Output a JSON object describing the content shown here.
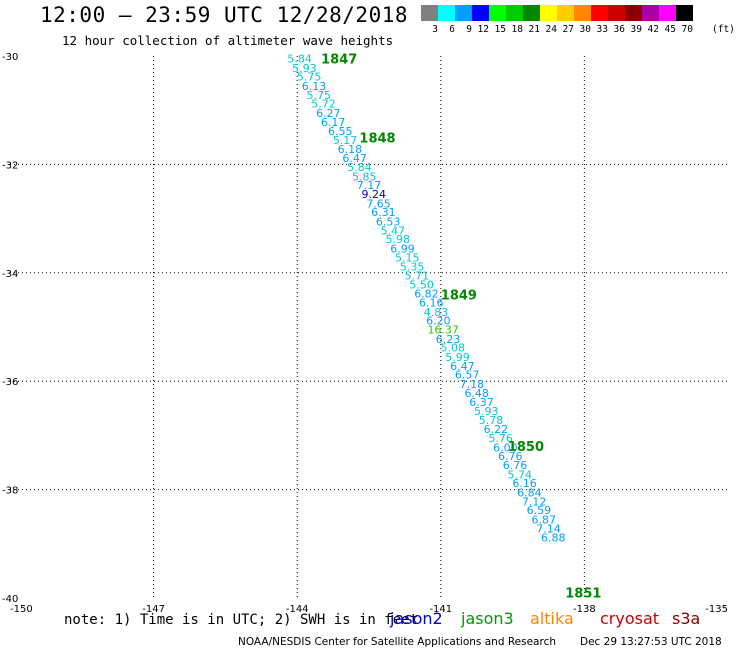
{
  "header": {
    "title": "12:00 — 23:59 UTC 12/28/2018",
    "subtitle": "12 hour collection of altimeter wave heights"
  },
  "color_scale": {
    "unit": "(ft)",
    "bins": [
      {
        "tick": "3",
        "color": "#808080"
      },
      {
        "tick": "6",
        "color": "#00ffff"
      },
      {
        "tick": "9",
        "color": "#00a0ff"
      },
      {
        "tick": "12",
        "color": "#0000ff"
      },
      {
        "tick": "15",
        "color": "#00ff00"
      },
      {
        "tick": "18",
        "color": "#00cc00"
      },
      {
        "tick": "21",
        "color": "#008800"
      },
      {
        "tick": "24",
        "color": "#ffff00"
      },
      {
        "tick": "27",
        "color": "#ffcc00"
      },
      {
        "tick": "30",
        "color": "#ff8800"
      },
      {
        "tick": "33",
        "color": "#ff0000"
      },
      {
        "tick": "36",
        "color": "#cc0000"
      },
      {
        "tick": "39",
        "color": "#880000"
      },
      {
        "tick": "42",
        "color": "#aa00aa"
      },
      {
        "tick": "45",
        "color": "#ff00ff"
      },
      {
        "tick": "70",
        "color": "#000000"
      }
    ]
  },
  "footer": {
    "note": "note: 1) Time is in UTC; 2) SWH is in feet",
    "satellites": [
      {
        "name": "jason2",
        "color": "#0000cc"
      },
      {
        "name": "jason3",
        "color": "#009900"
      },
      {
        "name": "altika",
        "color": "#ff8800"
      },
      {
        "name": "cryosat",
        "color": "#cc0000"
      },
      {
        "name": "s3a",
        "color": "#880000"
      }
    ],
    "credit": "NOAA/NESDIS Center for Satellite Applications and Research",
    "timestamp": "Dec 29 13:27:53 UTC 2018"
  },
  "chart_data": {
    "type": "scatter",
    "title": "12:00 — 23:59 UTC 12/28/2018",
    "xlabel": "",
    "ylabel": "",
    "xlim": [
      -150,
      -135
    ],
    "ylim": [
      -40,
      -30
    ],
    "x_ticks": [
      "-150",
      "-147",
      "-144",
      "-141",
      "-138",
      "-135"
    ],
    "x_tick_values": [
      -150,
      -147,
      -144,
      -141,
      -138,
      -135
    ],
    "y_ticks": [
      "-30",
      "-32",
      "-34",
      "-36",
      "-38",
      "-40"
    ],
    "y_tick_values": [
      -30,
      -32,
      -34,
      -36,
      -38,
      -40
    ],
    "grid": true,
    "series": [
      {
        "points": [
          {
            "lon": -143.95,
            "lat": -30.05,
            "value": "5.84",
            "color": "#00cccc"
          },
          {
            "lon": -143.85,
            "lat": -30.22,
            "value": "5.93",
            "color": "#00cccc"
          },
          {
            "lon": -143.75,
            "lat": -30.38,
            "value": "5.75",
            "color": "#00cccc"
          },
          {
            "lon": -143.65,
            "lat": -30.55,
            "value": "6.13",
            "color": "#00a0ff"
          },
          {
            "lon": -143.55,
            "lat": -30.72,
            "value": "5.75",
            "color": "#00cccc"
          },
          {
            "lon": -143.45,
            "lat": -30.88,
            "value": "5.72",
            "color": "#00cccc"
          },
          {
            "lon": -143.35,
            "lat": -31.05,
            "value": "6.27",
            "color": "#00a0ff"
          },
          {
            "lon": -143.25,
            "lat": -31.22,
            "value": "6.17",
            "color": "#00a0ff"
          },
          {
            "lon": -143.1,
            "lat": -31.38,
            "value": "6.55",
            "color": "#00a0ff"
          },
          {
            "lon": -143.0,
            "lat": -31.55,
            "value": "5.17",
            "color": "#00cccc"
          },
          {
            "lon": -142.9,
            "lat": -31.72,
            "value": "6.18",
            "color": "#00a0ff"
          },
          {
            "lon": -142.8,
            "lat": -31.88,
            "value": "6.47",
            "color": "#00a0ff"
          },
          {
            "lon": -142.7,
            "lat": -32.05,
            "value": "5.84",
            "color": "#00cccc"
          },
          {
            "lon": -142.6,
            "lat": -32.22,
            "value": "5.85",
            "color": "#00cccc"
          },
          {
            "lon": -142.5,
            "lat": -32.38,
            "value": "7.17",
            "color": "#00a0ff"
          },
          {
            "lon": -142.4,
            "lat": -32.55,
            "value": "9.24",
            "color": "#0000cc"
          },
          {
            "lon": -142.3,
            "lat": -32.72,
            "value": "7.65",
            "color": "#00a0ff"
          },
          {
            "lon": -142.2,
            "lat": -32.88,
            "value": "6.31",
            "color": "#00a0ff"
          },
          {
            "lon": -142.1,
            "lat": -33.05,
            "value": "6.53",
            "color": "#00a0ff"
          },
          {
            "lon": -142.0,
            "lat": -33.22,
            "value": "5.47",
            "color": "#00cccc"
          },
          {
            "lon": -141.9,
            "lat": -33.38,
            "value": "5.98",
            "color": "#00cccc"
          },
          {
            "lon": -141.8,
            "lat": -33.55,
            "value": "6.99",
            "color": "#00a0ff"
          },
          {
            "lon": -141.7,
            "lat": -33.72,
            "value": "5.15",
            "color": "#00cccc"
          },
          {
            "lon": -141.6,
            "lat": -33.88,
            "value": "5.35",
            "color": "#00cccc"
          },
          {
            "lon": -141.5,
            "lat": -34.05,
            "value": "5.71",
            "color": "#00cccc"
          },
          {
            "lon": -141.4,
            "lat": -34.22,
            "value": "5.50",
            "color": "#00cccc"
          },
          {
            "lon": -141.3,
            "lat": -34.38,
            "value": "6.82",
            "color": "#00a0ff"
          },
          {
            "lon": -141.2,
            "lat": -34.55,
            "value": "6.16",
            "color": "#00a0ff"
          },
          {
            "lon": -141.1,
            "lat": -34.72,
            "value": "4.83",
            "color": "#00cccc"
          },
          {
            "lon": -141.05,
            "lat": -34.88,
            "value": "6.20",
            "color": "#00a0ff"
          },
          {
            "lon": -140.95,
            "lat": -35.05,
            "value": "16.37",
            "color": "#33cc00"
          },
          {
            "lon": -140.85,
            "lat": -35.22,
            "value": "6.23",
            "color": "#00a0ff"
          },
          {
            "lon": -140.75,
            "lat": -35.38,
            "value": "5.08",
            "color": "#00cccc"
          },
          {
            "lon": -140.65,
            "lat": -35.55,
            "value": "5.99",
            "color": "#00cccc"
          },
          {
            "lon": -140.55,
            "lat": -35.72,
            "value": "6.47",
            "color": "#00a0ff"
          },
          {
            "lon": -140.45,
            "lat": -35.88,
            "value": "6.57",
            "color": "#00a0ff"
          },
          {
            "lon": -140.35,
            "lat": -36.05,
            "value": "7.18",
            "color": "#00a0ff"
          },
          {
            "lon": -140.25,
            "lat": -36.22,
            "value": "6.48",
            "color": "#00a0ff"
          },
          {
            "lon": -140.15,
            "lat": -36.38,
            "value": "6.37",
            "color": "#00a0ff"
          },
          {
            "lon": -140.05,
            "lat": -36.55,
            "value": "5.93",
            "color": "#00cccc"
          },
          {
            "lon": -139.95,
            "lat": -36.72,
            "value": "5.78",
            "color": "#00cccc"
          },
          {
            "lon": -139.85,
            "lat": -36.88,
            "value": "6.22",
            "color": "#00a0ff"
          },
          {
            "lon": -139.75,
            "lat": -37.05,
            "value": "5.76",
            "color": "#00cccc"
          },
          {
            "lon": -139.65,
            "lat": -37.22,
            "value": "6.00",
            "color": "#00a0ff"
          },
          {
            "lon": -139.55,
            "lat": -37.38,
            "value": "6.76",
            "color": "#00a0ff"
          },
          {
            "lon": -139.45,
            "lat": -37.55,
            "value": "6.76",
            "color": "#00a0ff"
          },
          {
            "lon": -139.35,
            "lat": -37.72,
            "value": "5.74",
            "color": "#00cccc"
          },
          {
            "lon": -139.25,
            "lat": -37.88,
            "value": "6.16",
            "color": "#00a0ff"
          },
          {
            "lon": -139.15,
            "lat": -38.05,
            "value": "6.84",
            "color": "#00a0ff"
          },
          {
            "lon": -139.05,
            "lat": -38.22,
            "value": "7.12",
            "color": "#00a0ff"
          },
          {
            "lon": -138.95,
            "lat": -38.38,
            "value": "6.59",
            "color": "#00a0ff"
          },
          {
            "lon": -138.85,
            "lat": -38.55,
            "value": "6.87",
            "color": "#00a0ff"
          },
          {
            "lon": -138.75,
            "lat": -38.72,
            "value": "7.14",
            "color": "#00a0ff"
          },
          {
            "lon": -138.65,
            "lat": -38.88,
            "value": "6.88",
            "color": "#00a0ff"
          }
        ]
      }
    ],
    "annotations": [
      {
        "text": "1847",
        "lon": -143.5,
        "lat": -30.05,
        "color": "#008800"
      },
      {
        "text": "1848",
        "lon": -142.7,
        "lat": -31.5,
        "color": "#008800"
      },
      {
        "text": "1849",
        "lon": -141.0,
        "lat": -34.4,
        "color": "#008800"
      },
      {
        "text": "1850",
        "lon": -139.6,
        "lat": -37.2,
        "color": "#008800"
      },
      {
        "text": "1851",
        "lon": -138.4,
        "lat": -39.9,
        "color": "#008800"
      }
    ]
  }
}
